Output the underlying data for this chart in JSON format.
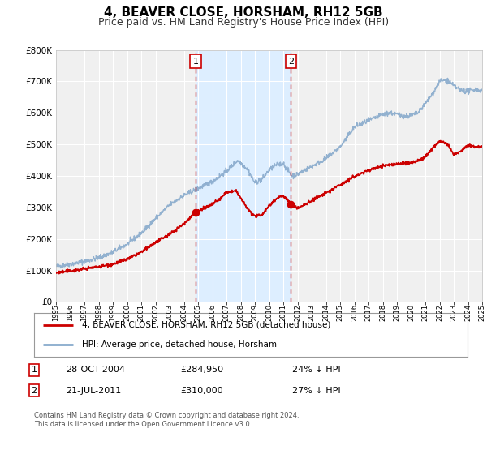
{
  "title": "4, BEAVER CLOSE, HORSHAM, RH12 5GB",
  "subtitle": "Price paid vs. HM Land Registry's House Price Index (HPI)",
  "title_fontsize": 11,
  "subtitle_fontsize": 9,
  "background_color": "#ffffff",
  "plot_bg_color": "#f0f0f0",
  "grid_color": "#ffffff",
  "legend_label_red": "4, BEAVER CLOSE, HORSHAM, RH12 5GB (detached house)",
  "legend_label_blue": "HPI: Average price, detached house, Horsham",
  "footer": "Contains HM Land Registry data © Crown copyright and database right 2024.\nThis data is licensed under the Open Government Licence v3.0.",
  "sale1_date": "28-OCT-2004",
  "sale1_price": 284950,
  "sale1_pct": "24% ↓ HPI",
  "sale2_date": "21-JUL-2011",
  "sale2_price": 310000,
  "sale2_pct": "27% ↓ HPI",
  "sale1_x": 2004.82,
  "sale2_x": 2011.54,
  "highlight_color": "#ddeeff",
  "vline_color": "#cc0000",
  "red_line_color": "#cc0000",
  "blue_line_color": "#88aacc",
  "ylim": [
    0,
    800000
  ],
  "xlim_start": 1995,
  "xlim_end": 2025
}
